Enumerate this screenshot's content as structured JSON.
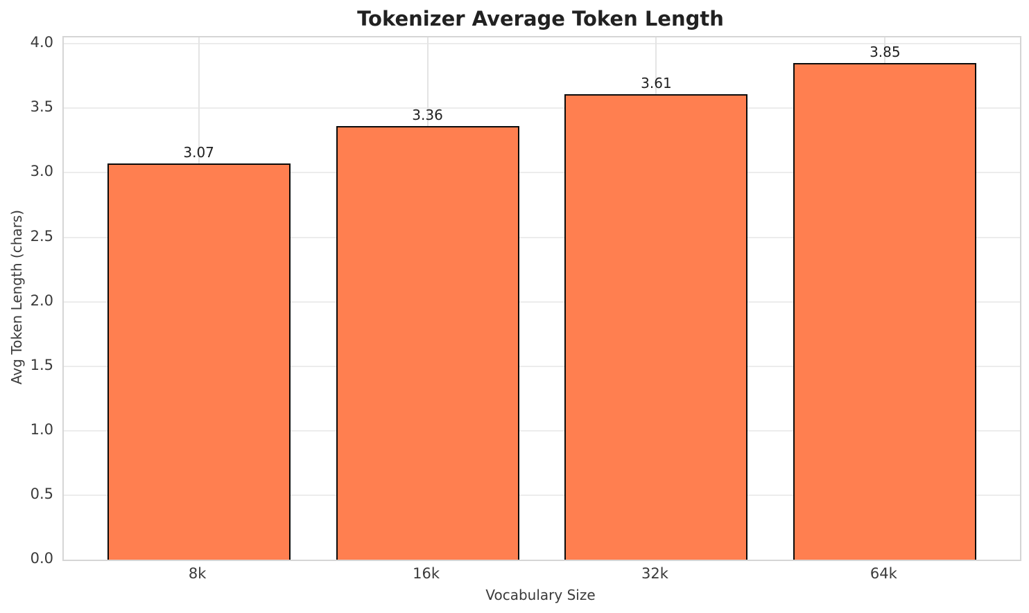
{
  "chart_data": {
    "type": "bar",
    "title": "Tokenizer Average Token Length",
    "xlabel": "Vocabulary Size",
    "ylabel": "Avg Token Length (chars)",
    "categories": [
      "8k",
      "16k",
      "32k",
      "64k"
    ],
    "values": [
      3.07,
      3.36,
      3.61,
      3.85
    ],
    "bar_labels": [
      "3.07",
      "3.36",
      "3.61",
      "3.85"
    ],
    "ylim": [
      0,
      4.05
    ],
    "yticks": [
      0,
      0.5,
      1,
      1.5,
      2,
      2.5,
      3,
      3.5,
      4
    ],
    "grid": true,
    "legend": "none",
    "bar_color": "#FF7F50",
    "bar_edge_color": "#0A0A0A",
    "grid_color": "#ECECEC",
    "spine_color": "#D5D5D5",
    "text_color": "#262626"
  }
}
